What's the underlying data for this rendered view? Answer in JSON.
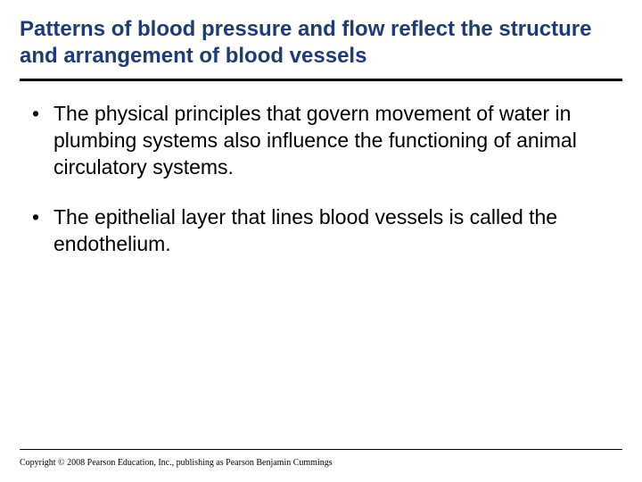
{
  "slide": {
    "title": "Patterns of blood pressure and flow reflect the structure and arrangement of blood vessels",
    "title_color": "#1f3a7a",
    "title_fontsize": 24,
    "rule_color": "#000000",
    "rule_thickness": 3,
    "background_color": "#ffffff",
    "body_fontsize": 23,
    "body_color": "#000000",
    "bullets": [
      "The physical principles that govern movement of water in plumbing systems also influence the functioning of animal circulatory systems.",
      "The epithelial layer that lines blood vessels is called the endothelium."
    ],
    "footer": "Copyright © 2008 Pearson Education, Inc., publishing as Pearson Benjamin Cummings",
    "footer_fontsize": 10
  }
}
